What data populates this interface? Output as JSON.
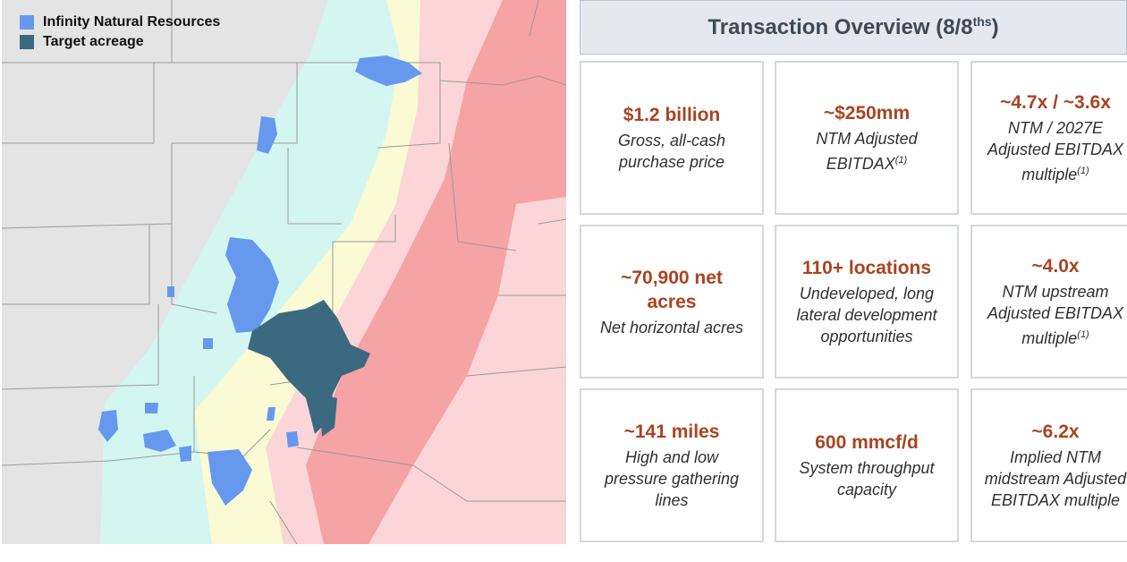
{
  "legend": {
    "items": [
      {
        "label": "Infinity Natural Resources",
        "color": "#6699ee"
      },
      {
        "label": "Target acreage",
        "color": "#3b6a80"
      }
    ]
  },
  "overview": {
    "title": "Transaction Overview (8/8",
    "title_sup": "ths",
    "title_end": ")"
  },
  "cards": [
    {
      "value": "$1.2 billion",
      "desc": "Gross, all-cash\npurchase price",
      "sup": ""
    },
    {
      "value": "~$250mm",
      "desc": "NTM Adjusted\nEBITDAX",
      "sup": "(1)"
    },
    {
      "value": "~4.7x / ~3.6x",
      "desc": "NTM / 2027E\nAdjusted EBITDAX\nmultiple",
      "sup": "(1)"
    },
    {
      "value": "~70,900 net\nacres",
      "desc": "Net horizontal acres",
      "sup": ""
    },
    {
      "value": "110+ locations",
      "desc": "Undeveloped, long\nlateral development\nopportunities",
      "sup": ""
    },
    {
      "value": "~4.0x",
      "desc": "NTM upstream\nAdjusted EBITDAX\nmultiple",
      "sup": "(1)"
    },
    {
      "value": "~141 miles",
      "desc": "High and low\npressure gathering\nlines",
      "sup": ""
    },
    {
      "value": "600 mmcf/d",
      "desc": "System throughput\ncapacity",
      "sup": ""
    },
    {
      "value": "~6.2x",
      "desc": "Implied NTM\nmidstream Adjusted\nEBITDAX multiple",
      "sup": ""
    }
  ],
  "colors": {
    "accent": "#a84422",
    "header_bg": "#e5e9ef",
    "zone_cyan": "#d4f6f1",
    "zone_yellow": "#fafad4",
    "zone_pink": "#fbd5d8",
    "zone_red": "#f5a3a5"
  }
}
